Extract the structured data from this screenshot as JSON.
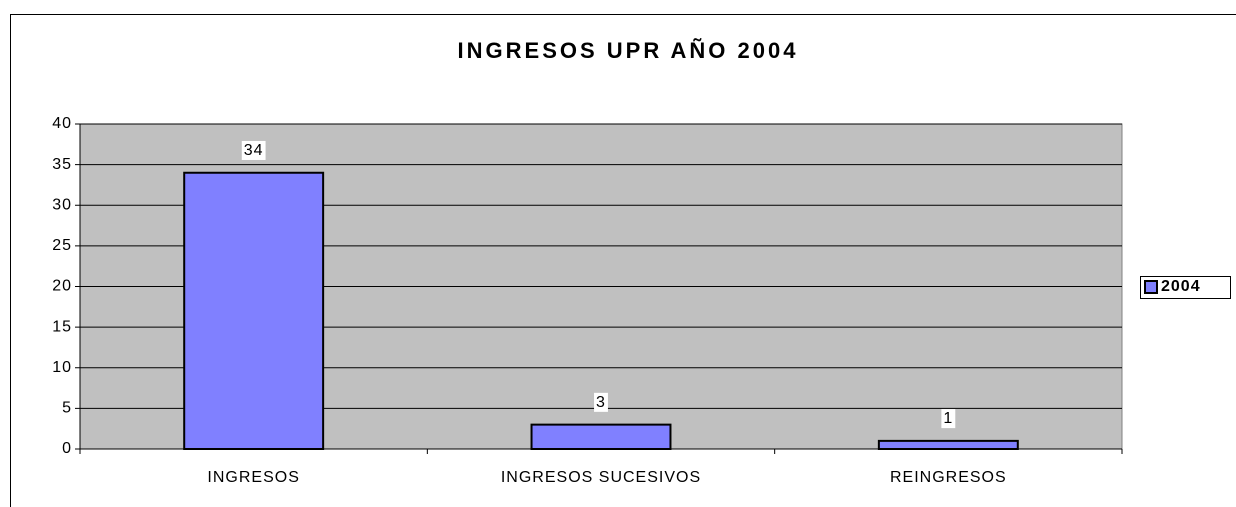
{
  "chart_data": {
    "type": "bar",
    "title": "INGRESOS UPR AÑO 2004",
    "categories": [
      "INGRESOS",
      "INGRESOS SUCESIVOS",
      "REINGRESOS"
    ],
    "series": [
      {
        "name": "2004",
        "color": "#8080ff",
        "values": [
          34,
          3,
          1
        ]
      }
    ],
    "ylim": [
      0,
      40
    ],
    "yticks": [
      0,
      5,
      10,
      15,
      20,
      25,
      30,
      35,
      40
    ],
    "grid": true,
    "legend": "right",
    "data_labels": true
  }
}
